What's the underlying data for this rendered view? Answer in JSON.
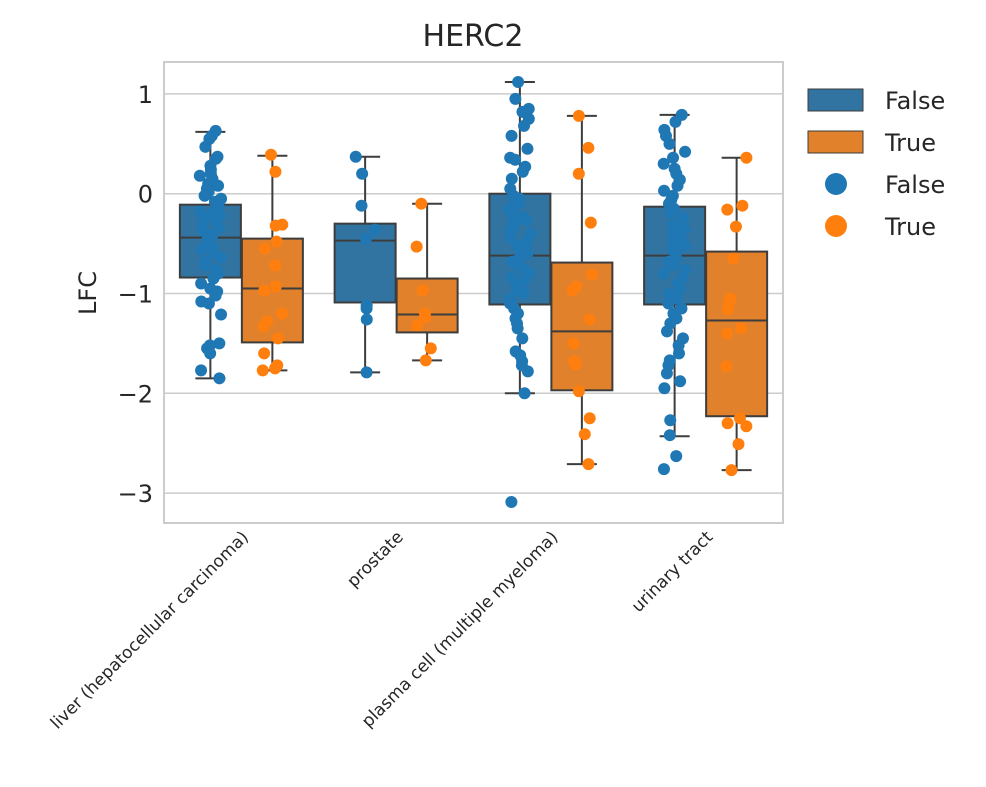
{
  "chart_data": {
    "type": "box",
    "title": "HERC2",
    "xlabel": "",
    "ylabel": "LFC",
    "ylim": [
      -3.3,
      1.32
    ],
    "yticks": [
      1,
      0,
      -1,
      -2,
      -3
    ],
    "ytick_labels": [
      "1",
      "0",
      "−1",
      "−2",
      "−3"
    ],
    "grid": true,
    "categories": [
      "liver (hepatocellular carcinoma)",
      "prostate",
      "plasma cell (multiple myeloma)",
      "urinary tract"
    ],
    "legend": {
      "placement": "outside-right",
      "box_entries": [
        {
          "label": "False",
          "color": "#3274a1"
        },
        {
          "label": "True",
          "color": "#e1812c"
        }
      ],
      "point_entries": [
        {
          "label": "False",
          "color": "#1f77b4"
        },
        {
          "label": "True",
          "color": "#ff7f0e"
        }
      ]
    },
    "series": [
      {
        "name": "False",
        "box_color": "#3274a1",
        "point_color": "#1f77b4",
        "stats": [
          {
            "q1": -0.84,
            "median": -0.44,
            "q3": -0.11,
            "whisker_low": -1.85,
            "whisker_high": 0.62
          },
          {
            "q1": -1.09,
            "median": -0.47,
            "q3": -0.3,
            "whisker_low": -1.79,
            "whisker_high": 0.37
          },
          {
            "q1": -1.11,
            "median": -0.62,
            "q3": 0.0,
            "whisker_low": -2.0,
            "whisker_high": 1.12
          },
          {
            "q1": -1.11,
            "median": -0.62,
            "q3": -0.13,
            "whisker_low": -2.43,
            "whisker_high": 0.79
          }
        ],
        "points": [
          [
            0.63,
            0.58,
            0.55,
            0.47,
            0.37,
            0.35,
            0.28,
            0.24,
            0.2,
            0.18,
            0.15,
            0.12,
            0.1,
            0.08,
            0.05,
            0.02,
            -0.02,
            -0.05,
            -0.08,
            -0.12,
            -0.15,
            -0.18,
            -0.2,
            -0.22,
            -0.25,
            -0.28,
            -0.31,
            -0.34,
            -0.37,
            -0.4,
            -0.43,
            -0.46,
            -0.5,
            -0.53,
            -0.56,
            -0.6,
            -0.64,
            -0.68,
            -0.72,
            -0.76,
            -0.8,
            -0.85,
            -0.9,
            -0.95,
            -0.98,
            -1.02,
            -1.08,
            -1.1,
            -1.21,
            -1.5,
            -1.52,
            -1.55,
            -1.6,
            -1.77,
            -1.85
          ],
          [
            0.37,
            0.2,
            -0.12,
            -0.36,
            -0.45,
            -1.12,
            -1.15,
            -1.26,
            -1.79
          ],
          [
            1.12,
            0.95,
            0.85,
            0.82,
            0.75,
            0.68,
            0.58,
            0.45,
            0.36,
            0.34,
            0.27,
            0.22,
            0.15,
            0.05,
            -0.02,
            -0.05,
            -0.1,
            -0.13,
            -0.16,
            -0.2,
            -0.23,
            -0.27,
            -0.3,
            -0.34,
            -0.37,
            -0.4,
            -0.44,
            -0.48,
            -0.52,
            -0.56,
            -0.6,
            -0.64,
            -0.68,
            -0.72,
            -0.76,
            -0.8,
            -0.84,
            -0.88,
            -0.92,
            -0.96,
            -1.0,
            -1.05,
            -1.1,
            -1.15,
            -1.2,
            -1.25,
            -1.3,
            -1.35,
            -1.45,
            -1.58,
            -1.62,
            -1.68,
            -1.72,
            -1.78,
            -2.0,
            -3.09
          ],
          [
            0.79,
            0.72,
            0.64,
            0.58,
            0.5,
            0.42,
            0.36,
            0.3,
            0.25,
            0.2,
            0.14,
            0.08,
            0.03,
            -0.02,
            -0.06,
            -0.1,
            -0.15,
            -0.2,
            -0.24,
            -0.28,
            -0.32,
            -0.36,
            -0.4,
            -0.44,
            -0.48,
            -0.52,
            -0.56,
            -0.6,
            -0.64,
            -0.68,
            -0.72,
            -0.76,
            -0.8,
            -0.85,
            -0.9,
            -0.95,
            -1.0,
            -1.05,
            -1.1,
            -1.15,
            -1.2,
            -1.25,
            -1.3,
            -1.38,
            -1.45,
            -1.52,
            -1.6,
            -1.67,
            -1.72,
            -1.8,
            -1.88,
            -1.95,
            -2.27,
            -2.42,
            -2.63,
            -2.76
          ]
        ]
      },
      {
        "name": "True",
        "box_color": "#e1812c",
        "point_color": "#ff7f0e",
        "stats": [
          {
            "q1": -1.49,
            "median": -0.95,
            "q3": -0.45,
            "whisker_low": -1.77,
            "whisker_high": 0.38
          },
          {
            "q1": -1.39,
            "median": -1.21,
            "q3": -0.85,
            "whisker_low": -1.67,
            "whisker_high": -0.1
          },
          {
            "q1": -1.97,
            "median": -1.38,
            "q3": -0.69,
            "whisker_low": -2.71,
            "whisker_high": 0.78
          },
          {
            "q1": -2.23,
            "median": -1.27,
            "q3": -0.58,
            "whisker_low": -2.77,
            "whisker_high": 0.36
          }
        ],
        "points": [
          [
            0.39,
            0.22,
            -0.31,
            -0.32,
            -0.48,
            -0.55,
            -0.72,
            -0.93,
            -0.97,
            -1.2,
            -1.28,
            -1.33,
            -1.45,
            -1.6,
            -1.72,
            -1.75,
            -1.77
          ],
          [
            -0.1,
            -0.53,
            -0.97,
            -1.2,
            -1.24,
            -1.32,
            -1.55,
            -1.67
          ],
          [
            0.78,
            0.46,
            0.2,
            -0.29,
            -0.81,
            -0.93,
            -0.97,
            -1.26,
            -1.5,
            -1.68,
            -1.71,
            -1.98,
            -2.25,
            -2.41,
            -2.71
          ],
          [
            0.36,
            -0.12,
            -0.16,
            -0.33,
            -0.65,
            -1.05,
            -1.1,
            -1.16,
            -1.35,
            -1.4,
            -1.73,
            -2.25,
            -2.3,
            -2.33,
            -2.51,
            -2.77
          ]
        ]
      }
    ]
  }
}
